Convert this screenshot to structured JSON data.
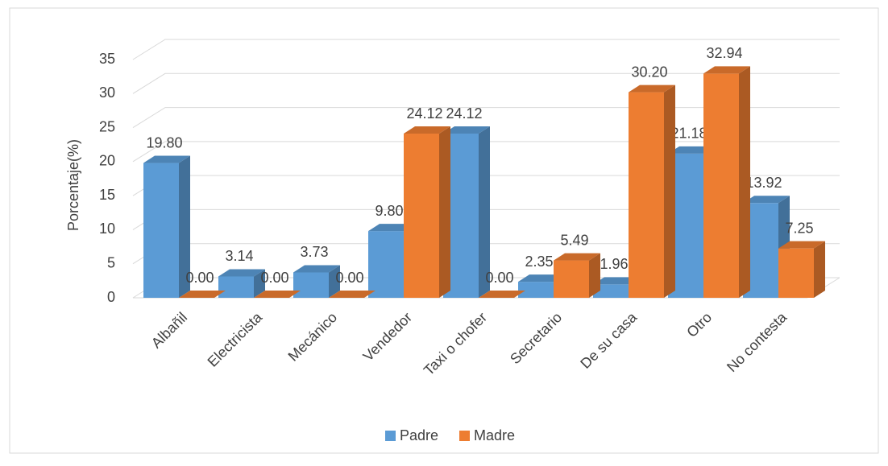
{
  "chart_data": {
    "type": "bar3d",
    "y_label": "Porcentaje(%)",
    "categories": [
      "Albañil",
      "Electricista",
      "Mecánico",
      "Vendedor",
      "Taxi o chofer",
      "Secretario",
      "De su casa",
      "Otro",
      "No contesta"
    ],
    "series": [
      {
        "name": "Padre",
        "color": "#5b9bd5",
        "values": [
          19.8,
          3.14,
          3.73,
          9.8,
          24.12,
          2.35,
          1.96,
          21.18,
          13.92
        ],
        "value_labels": [
          "19.80",
          "3.14",
          "3.73",
          "9.80",
          "24.12",
          "2.35",
          "1.96",
          "21.18",
          "13.92"
        ]
      },
      {
        "name": "Madre",
        "color": "#ed7d31",
        "values": [
          0.0,
          0.0,
          0.0,
          24.12,
          0.0,
          5.49,
          30.2,
          32.94,
          7.25
        ],
        "value_labels": [
          "0.00",
          "0.00",
          "0.00",
          "24.12",
          "0.00",
          "5.49",
          "30.20",
          "32.94",
          "7.25"
        ]
      }
    ],
    "ylim": [
      0,
      35
    ],
    "yticks": [
      0,
      5,
      10,
      15,
      20,
      25,
      30,
      35
    ],
    "grid": true,
    "legend": "bottom"
  }
}
